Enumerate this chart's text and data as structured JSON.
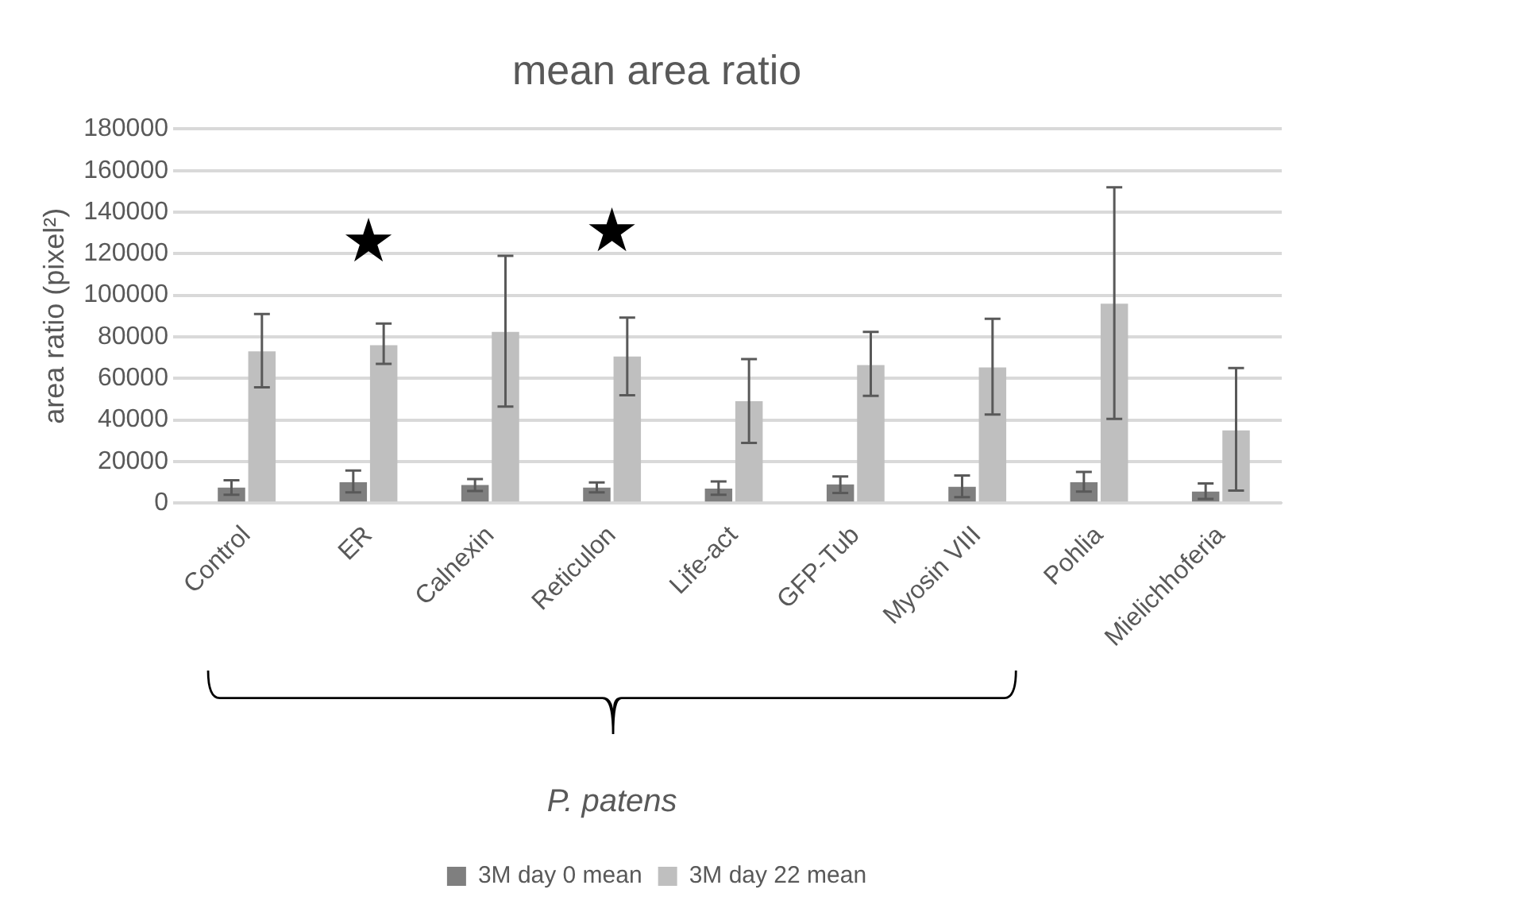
{
  "chart_data": {
    "type": "bar",
    "title": "mean area ratio",
    "ylabel": "area ratio (pixel²)",
    "categories": [
      "Control",
      "ER",
      "Calnexin",
      "Reticulon",
      "Life-act",
      "GFP-Tub",
      "Myosin VIII",
      "Pohlia",
      "Mielichhoferia"
    ],
    "series": [
      {
        "name": "3M day 0 mean",
        "color": "#7f7f7f",
        "values": [
          7500,
          10000,
          8700,
          7500,
          7000,
          9000,
          7800,
          10000,
          5500
        ],
        "errors": [
          [
            4000,
            11000
          ],
          [
            5200,
            15700
          ],
          [
            5800,
            11600
          ],
          [
            5200,
            9900
          ],
          [
            4000,
            10400
          ],
          [
            4900,
            12800
          ],
          [
            2900,
            13300
          ],
          [
            5500,
            15000
          ],
          [
            2000,
            9500
          ]
        ]
      },
      {
        "name": "3M day 22 mean",
        "color": "#bfbfbf",
        "values": [
          73000,
          76000,
          82400,
          70500,
          49000,
          66400,
          65300,
          96000,
          35000
        ],
        "errors": [
          [
            55700,
            91000
          ],
          [
            67000,
            86400
          ],
          [
            46400,
            119000
          ],
          [
            51900,
            89300
          ],
          [
            29000,
            69300
          ],
          [
            51600,
            82400
          ],
          [
            42600,
            88700
          ],
          [
            40500,
            152000
          ],
          [
            6000,
            65000
          ]
        ]
      }
    ],
    "ylim": [
      0,
      180000
    ],
    "yticks": [
      0,
      20000,
      40000,
      60000,
      80000,
      100000,
      120000,
      140000,
      160000,
      180000
    ],
    "grid": "y",
    "legend": "bottom",
    "annotations": [
      "★",
      "★",
      "P. patens"
    ]
  }
}
